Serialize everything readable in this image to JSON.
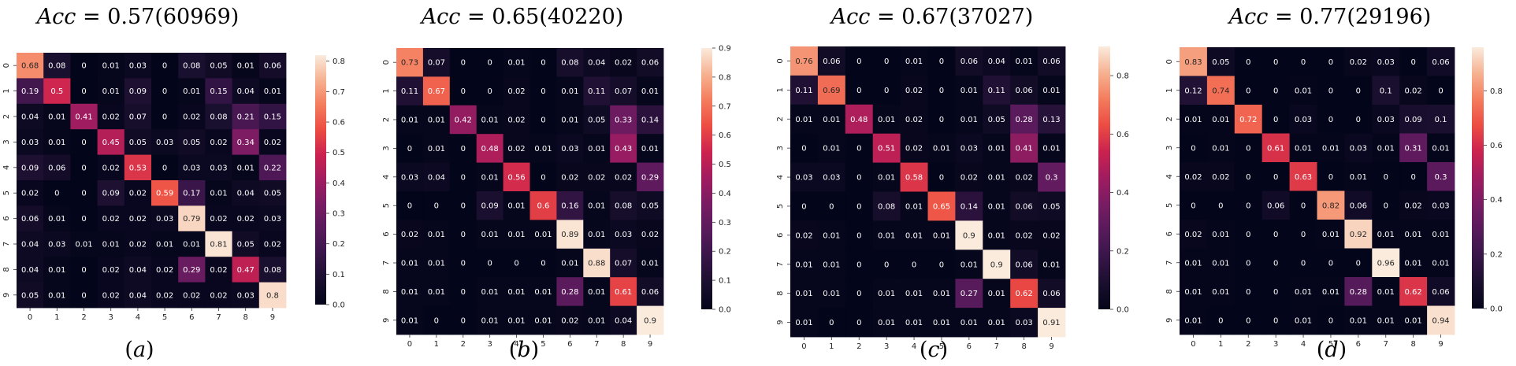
{
  "chart_data": [
    {
      "type": "heatmap",
      "title_prefix": "Acc",
      "title_value": " = 0.57(60969)",
      "label_letter": "a",
      "row_labels": [
        "0",
        "1",
        "2",
        "3",
        "4",
        "5",
        "6",
        "7",
        "8",
        "9"
      ],
      "col_labels": [
        "0",
        "1",
        "2",
        "3",
        "4",
        "5",
        "6",
        "7",
        "8",
        "9"
      ],
      "vmin": 0,
      "vmax": 0.82,
      "colorbar_ticks": [
        0.0,
        0.1,
        0.2,
        0.3,
        0.4,
        0.5,
        0.6,
        0.7,
        0.8
      ],
      "colorbar_labels": [
        "0.0",
        "0.1",
        "0.2",
        "0.3",
        "0.4",
        "0.5",
        "0.6",
        "0.7",
        "0.8"
      ],
      "matrix": [
        [
          0.68,
          0.08,
          0,
          0.01,
          0.03,
          0,
          0.08,
          0.05,
          0.01,
          0.06
        ],
        [
          0.19,
          0.5,
          0,
          0.01,
          0.09,
          0,
          0.01,
          0.15,
          0.04,
          0.01
        ],
        [
          0.04,
          0.01,
          0.41,
          0.02,
          0.07,
          0,
          0.02,
          0.08,
          0.21,
          0.15
        ],
        [
          0.03,
          0.01,
          0,
          0.45,
          0.05,
          0.03,
          0.05,
          0.02,
          0.34,
          0.02
        ],
        [
          0.09,
          0.06,
          0,
          0.02,
          0.53,
          0,
          0.03,
          0.03,
          0.01,
          0.22
        ],
        [
          0.02,
          0,
          0,
          0.09,
          0.02,
          0.59,
          0.17,
          0.01,
          0.04,
          0.05
        ],
        [
          0.06,
          0.01,
          0,
          0.02,
          0.02,
          0.03,
          0.79,
          0.02,
          0.02,
          0.03
        ],
        [
          0.04,
          0.03,
          0.01,
          0.01,
          0.02,
          0.01,
          0.01,
          0.81,
          0.05,
          0.02
        ],
        [
          0.04,
          0.01,
          0,
          0.02,
          0.04,
          0.02,
          0.29,
          0.02,
          0.47,
          0.08
        ],
        [
          0.05,
          0.01,
          0,
          0.02,
          0.04,
          0.02,
          0.02,
          0.02,
          0.03,
          0.8
        ]
      ]
    },
    {
      "type": "heatmap",
      "title_prefix": "Acc",
      "title_value": " = 0.65(40220)",
      "label_letter": "b",
      "row_labels": [
        "0",
        "1",
        "2",
        "3",
        "4",
        "5",
        "6",
        "7",
        "8",
        "9"
      ],
      "col_labels": [
        "0",
        "1",
        "2",
        "3",
        "4",
        "5",
        "6",
        "7",
        "8",
        "9"
      ],
      "vmin": 0,
      "vmax": 0.9,
      "colorbar_ticks": [
        0.0,
        0.1,
        0.2,
        0.3,
        0.4,
        0.5,
        0.6,
        0.7,
        0.8,
        0.9
      ],
      "colorbar_labels": [
        "0.0",
        "0.1",
        "0.2",
        "0.3",
        "0.4",
        "0.5",
        "0.6",
        "0.7",
        "0.8",
        "0.9"
      ],
      "matrix": [
        [
          0.73,
          0.07,
          0,
          0,
          0.01,
          0,
          0.08,
          0.04,
          0.02,
          0.06
        ],
        [
          0.11,
          0.67,
          0,
          0,
          0.02,
          0,
          0.01,
          0.11,
          0.07,
          0.01
        ],
        [
          0.01,
          0.01,
          0.42,
          0.01,
          0.02,
          0,
          0.01,
          0.05,
          0.33,
          0.14
        ],
        [
          0,
          0.01,
          0,
          0.48,
          0.02,
          0.01,
          0.03,
          0.01,
          0.43,
          0.01
        ],
        [
          0.03,
          0.04,
          0,
          0.01,
          0.56,
          0,
          0.02,
          0.02,
          0.02,
          0.29
        ],
        [
          0,
          0,
          0,
          0.09,
          0.01,
          0.6,
          0.16,
          0.01,
          0.08,
          0.05
        ],
        [
          0.02,
          0.01,
          0,
          0.01,
          0.01,
          0.01,
          0.89,
          0.01,
          0.03,
          0.02
        ],
        [
          0.01,
          0.01,
          0,
          0,
          0,
          0,
          0.01,
          0.88,
          0.07,
          0.01
        ],
        [
          0.01,
          0.01,
          0,
          0.01,
          0.01,
          0.01,
          0.28,
          0.01,
          0.61,
          0.06
        ],
        [
          0.01,
          0,
          0,
          0.01,
          0.01,
          0.01,
          0.02,
          0.01,
          0.04,
          0.9
        ]
      ]
    },
    {
      "type": "heatmap",
      "title_prefix": "Acc",
      "title_value": " = 0.67(37027)",
      "label_letter": "c",
      "row_labels": [
        "0",
        "1",
        "2",
        "3",
        "4",
        "5",
        "6",
        "7",
        "8",
        "9"
      ],
      "col_labels": [
        "0",
        "1",
        "2",
        "3",
        "4",
        "5",
        "6",
        "7",
        "8",
        "9"
      ],
      "vmin": 0,
      "vmax": 0.9,
      "colorbar_ticks": [
        0.0,
        0.2,
        0.4,
        0.6,
        0.8
      ],
      "colorbar_labels": [
        "0.0",
        "0.2",
        "0.4",
        "0.6",
        "0.8"
      ],
      "matrix": [
        [
          0.76,
          0.06,
          0,
          0,
          0.01,
          0,
          0.06,
          0.04,
          0.01,
          0.06
        ],
        [
          0.11,
          0.69,
          0,
          0,
          0.02,
          0,
          0.01,
          0.11,
          0.06,
          0.01
        ],
        [
          0.01,
          0.01,
          0.48,
          0.01,
          0.02,
          0,
          0.01,
          0.05,
          0.28,
          0.13
        ],
        [
          0,
          0.01,
          0,
          0.51,
          0.02,
          0.01,
          0.03,
          0.01,
          0.41,
          0.01
        ],
        [
          0.03,
          0.03,
          0,
          0.01,
          0.58,
          0,
          0.02,
          0.01,
          0.02,
          0.3
        ],
        [
          0,
          0,
          0,
          0.08,
          0.01,
          0.65,
          0.14,
          0.01,
          0.06,
          0.05
        ],
        [
          0.02,
          0.01,
          0,
          0.01,
          0.01,
          0.01,
          0.9,
          0.01,
          0.02,
          0.02
        ],
        [
          0.01,
          0.01,
          0,
          0,
          0,
          0,
          0.01,
          0.9,
          0.06,
          0.01
        ],
        [
          0.01,
          0.01,
          0,
          0.01,
          0.01,
          0.01,
          0.27,
          0.01,
          0.62,
          0.06
        ],
        [
          0.01,
          0,
          0,
          0.01,
          0.01,
          0.01,
          0.01,
          0.01,
          0.03,
          0.91
        ]
      ]
    },
    {
      "type": "heatmap",
      "title_prefix": "Acc",
      "title_value": " = 0.77(29196)",
      "label_letter": "d",
      "row_labels": [
        "0",
        "1",
        "2",
        "3",
        "4",
        "5",
        "6",
        "7",
        "8",
        "9"
      ],
      "col_labels": [
        "0",
        "1",
        "2",
        "3",
        "4",
        "5",
        "6",
        "7",
        "8",
        "9"
      ],
      "vmin": 0,
      "vmax": 0.96,
      "colorbar_ticks": [
        0.0,
        0.2,
        0.4,
        0.6,
        0.8
      ],
      "colorbar_labels": [
        "0.0",
        "0.2",
        "0.4",
        "0.6",
        "0.8"
      ],
      "matrix": [
        [
          0.83,
          0.05,
          0,
          0,
          0,
          0,
          0.02,
          0.03,
          0,
          0.06
        ],
        [
          0.12,
          0.74,
          0,
          0,
          0.01,
          0,
          0,
          0.1,
          0.02,
          0
        ],
        [
          0.01,
          0.01,
          0.72,
          0,
          0.03,
          0,
          0,
          0.03,
          0.09,
          0.1
        ],
        [
          0,
          0.01,
          0,
          0.61,
          0.01,
          0.01,
          0.03,
          0.01,
          0.31,
          0.01
        ],
        [
          0.02,
          0.02,
          0,
          0,
          0.63,
          0,
          0.01,
          0,
          0,
          0.3
        ],
        [
          0,
          0,
          0,
          0.06,
          0,
          0.82,
          0.06,
          0,
          0.02,
          0.03
        ],
        [
          0.02,
          0.01,
          0,
          0,
          0,
          0.01,
          0.92,
          0.01,
          0.01,
          0.01
        ],
        [
          0.01,
          0.01,
          0,
          0,
          0,
          0,
          0,
          0.96,
          0.01,
          0.01
        ],
        [
          0.01,
          0.01,
          0,
          0,
          0.01,
          0.01,
          0.28,
          0.01,
          0.62,
          0.06
        ],
        [
          0.01,
          0,
          0,
          0,
          0.01,
          0,
          0.01,
          0.01,
          0.01,
          0.94
        ]
      ]
    }
  ]
}
